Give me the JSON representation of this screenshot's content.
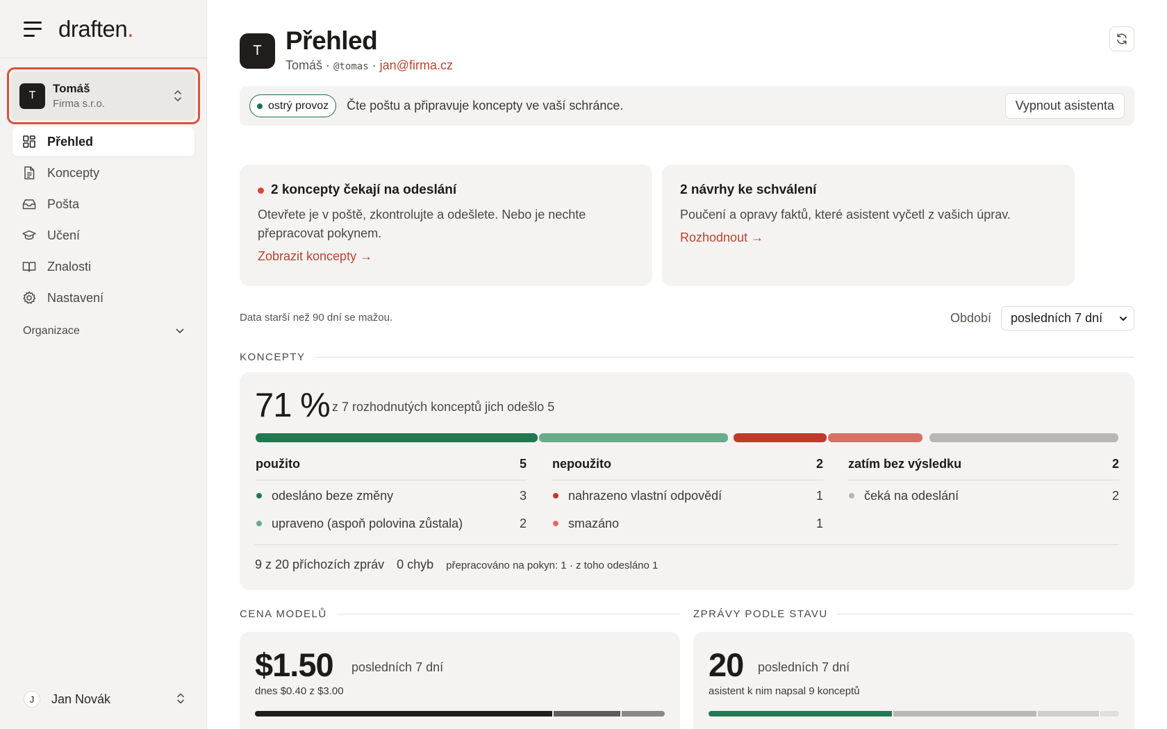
{
  "app": {
    "logo_text": "draften",
    "logo_dot": "."
  },
  "org_switcher": {
    "avatar": "T",
    "name": "Tomáš",
    "company": "Firma s.r.o."
  },
  "nav": [
    {
      "label": "Přehled",
      "icon": "dashboard-icon",
      "active": true
    },
    {
      "label": "Koncepty",
      "icon": "document-icon",
      "active": false
    },
    {
      "label": "Pošta",
      "icon": "inbox-icon",
      "active": false
    },
    {
      "label": "Učení",
      "icon": "graduation-cap-icon",
      "active": false
    },
    {
      "label": "Znalosti",
      "icon": "book-icon",
      "active": false
    },
    {
      "label": "Nastavení",
      "icon": "gear-icon",
      "active": false
    }
  ],
  "org_section": {
    "label": "Organizace"
  },
  "user": {
    "avatar": "J",
    "name": "Jan Novák"
  },
  "page": {
    "avatar": "T",
    "title": "Přehled",
    "name": "Tomáš",
    "separator": "·",
    "handle": "@tomas",
    "email": "jan@firma.cz"
  },
  "status": {
    "badge": "ostrý provoz",
    "text": "Čte poštu a připravuje koncepty ve vaší schránce.",
    "button": "Vypnout asistenta"
  },
  "alerts": [
    {
      "title": "2 koncepty čekají na odeslání",
      "body": "Otevřete je v poště, zkontrolujte a odešlete. Nebo je nechte přepracovat pokynem.",
      "link": "Zobrazit koncepty →",
      "dot": true
    },
    {
      "title": "2 návrhy ke schválení",
      "body": "Poučení a opravy faktů, které asistent vyčetl z vašich úprav.",
      "link": "Rozhodnout →",
      "dot": false
    }
  ],
  "retention_note": "Data starší než 90 dní se mažou.",
  "period": {
    "label": "Období",
    "value": "posledních 7 dní"
  },
  "drafts": {
    "section_title": "KONCEPTY",
    "percent": "71 %",
    "summary": "z 7 rozhodnutých konceptů jich odešlo 5",
    "colors": {
      "sent": "#1f7a52",
      "edited": "#6aab8c",
      "replaced": "#c0392b",
      "deleted": "#d97068",
      "waiting": "#b8b7b4"
    },
    "bar_counts": {
      "sent": 3,
      "edited": 2,
      "replaced": 1,
      "deleted": 1,
      "waiting": 2
    },
    "columns": [
      {
        "title": "použito",
        "total": "5",
        "rows": [
          {
            "label": "odesláno beze změny",
            "value": "3",
            "color": "#1f7a52"
          },
          {
            "label": "upraveno (aspoň polovina zůstala)",
            "value": "2",
            "color": "#6aab8c"
          }
        ]
      },
      {
        "title": "nepoužito",
        "total": "2",
        "rows": [
          {
            "label": "nahrazeno vlastní odpovědí",
            "value": "1",
            "color": "#c0392b"
          },
          {
            "label": "smazáno",
            "value": "1",
            "color": "#d97068"
          }
        ]
      },
      {
        "title": "zatím bez výsledku",
        "total": "2",
        "rows": [
          {
            "label": "čeká na odeslání",
            "value": "2",
            "color": "#b8b7b4"
          }
        ]
      }
    ],
    "footer": {
      "incoming_count": "9",
      "incoming_text": "z 20 příchozích zpráv",
      "errors": "0 chyb",
      "rework": "přepracováno na pokyn: 1 · z toho odesláno 1"
    }
  },
  "model_cost": {
    "section_title": "CENA MODELŮ",
    "value": "$1.50",
    "period": "posledních 7 dní",
    "today": "dnes $0.40 z $3.00"
  },
  "messages_by_status": {
    "section_title": "ZPRÁVY PODLE STAVU",
    "value": "20",
    "period": "posledních 7 dní",
    "note": "asistent k nim napsal 9 konceptů"
  }
}
